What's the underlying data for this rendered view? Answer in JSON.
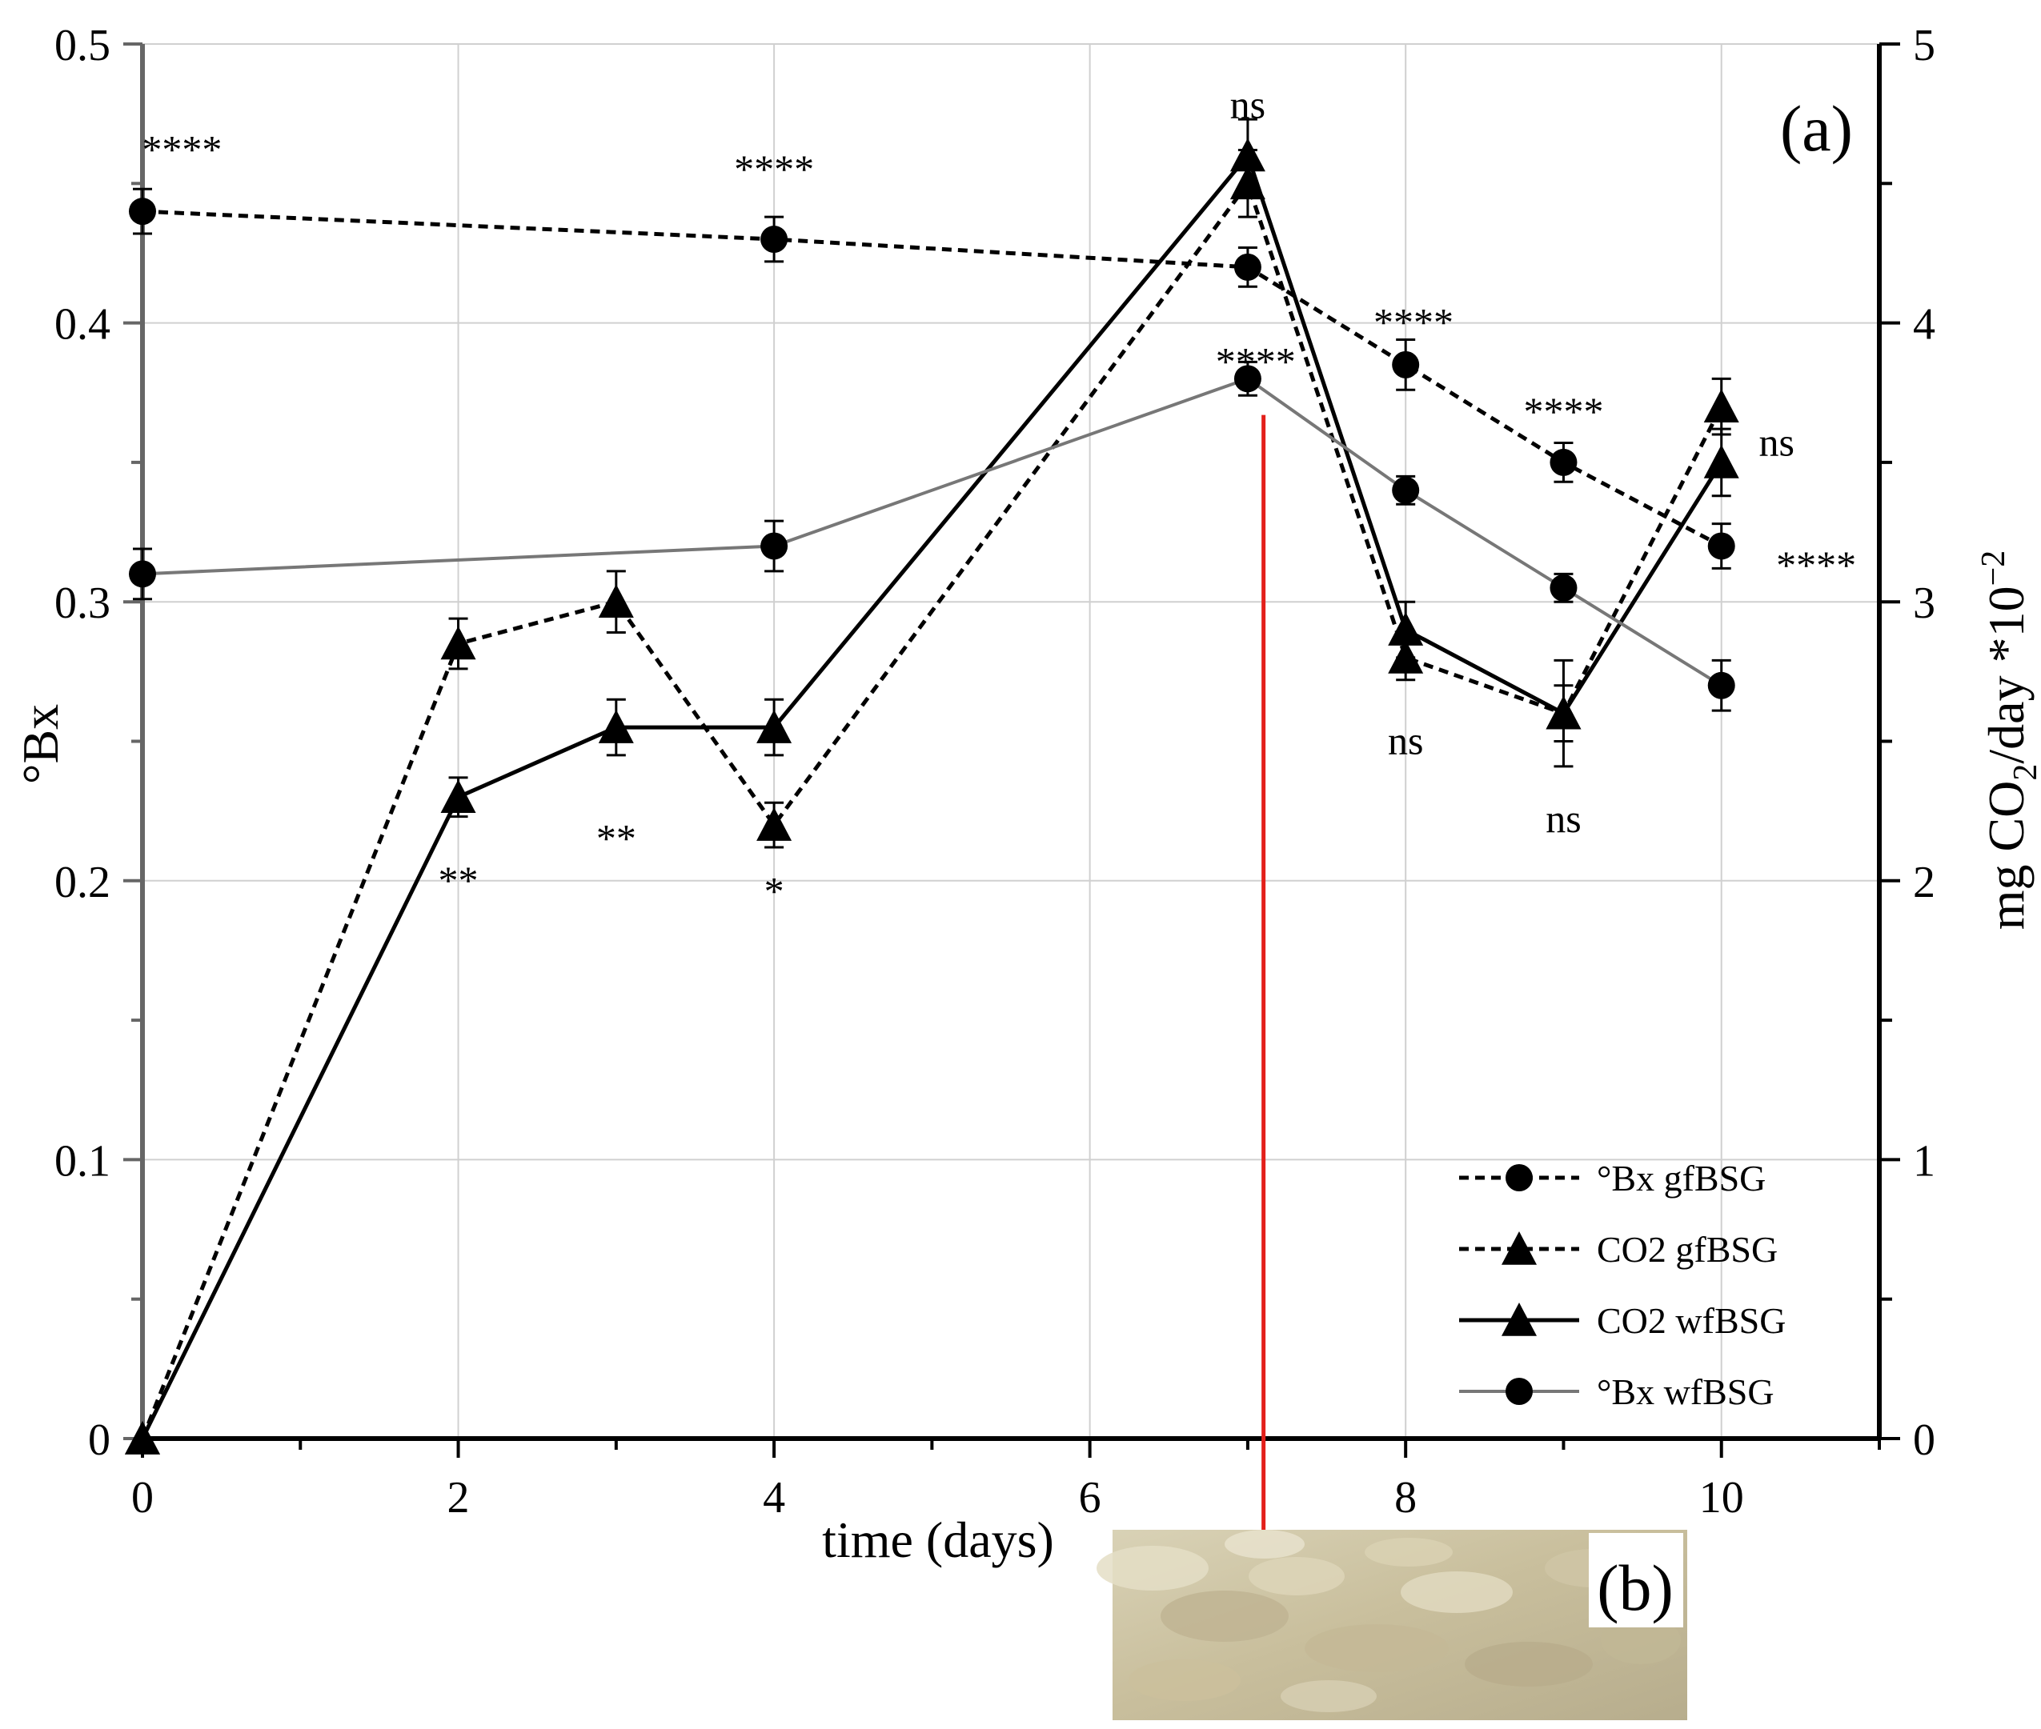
{
  "chart_data": {
    "type": "line",
    "panel_labels": {
      "a": "(a)",
      "b": "(b)"
    },
    "xlabel": "time (days)",
    "ylabel_left": "°Bx",
    "ylabel_right_parts": {
      "main": "mg CO",
      "sub": "2",
      "tail": "/day *10",
      "sup": "−2"
    },
    "xlim": [
      0,
      11
    ],
    "ylim_left": [
      0,
      0.5
    ],
    "ylim_right": [
      0,
      5
    ],
    "x_ticks": [
      0,
      2,
      4,
      6,
      8,
      10
    ],
    "x_tick_labels": [
      "0",
      "2",
      "4",
      "6",
      "8",
      "10"
    ],
    "y_left_ticks": [
      0,
      0.1,
      0.2,
      0.3,
      0.4,
      0.5
    ],
    "y_left_tick_labels": [
      "0",
      "0.1",
      "0.2",
      "0.3",
      "0.4",
      "0.5"
    ],
    "y_right_ticks": [
      0,
      1,
      2,
      3,
      4,
      5
    ],
    "y_right_tick_labels": [
      "0",
      "1",
      "2",
      "3",
      "4",
      "5"
    ],
    "grid": true,
    "legend_position": "bottom-right",
    "series": [
      {
        "name": "°Bx gfBSG",
        "axis": "left",
        "marker": "circle",
        "style": "dashed",
        "color": "#000000",
        "x": [
          0,
          4,
          7,
          8,
          9,
          10
        ],
        "y": [
          0.44,
          0.43,
          0.42,
          0.385,
          0.35,
          0.32
        ],
        "err": [
          0.008,
          0.008,
          0.007,
          0.009,
          0.007,
          0.008
        ]
      },
      {
        "name": "CO2 gfBSG",
        "axis": "right",
        "marker": "triangle",
        "style": "dashed",
        "color": "#000000",
        "x": [
          0,
          2,
          3,
          4,
          7,
          8,
          9,
          10
        ],
        "y": [
          0,
          2.85,
          3.0,
          2.2,
          4.5,
          2.8,
          2.6,
          3.7
        ],
        "err": [
          0,
          0.09,
          0.11,
          0.08,
          0.12,
          0.08,
          0.1,
          0.1
        ]
      },
      {
        "name": "CO2 wfBSG",
        "axis": "right",
        "marker": "triangle",
        "style": "solid",
        "color": "#000000",
        "x": [
          0,
          2,
          3,
          4,
          7,
          8,
          9,
          10
        ],
        "y": [
          0,
          2.3,
          2.55,
          2.55,
          4.6,
          2.9,
          2.6,
          3.5
        ],
        "err": [
          0,
          0.07,
          0.1,
          0.1,
          0.13,
          0.1,
          0.19,
          0.12
        ]
      },
      {
        "name": "°Bx wfBSG",
        "axis": "left",
        "marker": "circle",
        "style": "solid",
        "color": "#777777",
        "x": [
          0,
          4,
          7,
          8,
          9,
          10
        ],
        "y": [
          0.31,
          0.32,
          0.38,
          0.34,
          0.305,
          0.27
        ],
        "err": [
          0.009,
          0.009,
          0.006,
          0.005,
          0.005,
          0.009
        ]
      }
    ],
    "annotations": [
      {
        "text": "****",
        "x": 0.25,
        "y_left": 0.462
      },
      {
        "text": "****",
        "x": 4.0,
        "y_left": 0.455
      },
      {
        "text": "ns",
        "x": 7.0,
        "y_left": 0.478
      },
      {
        "text": "****",
        "x": 7.05,
        "y_left": 0.386
      },
      {
        "text": "****",
        "x": 8.05,
        "y_left": 0.4
      },
      {
        "text": "****",
        "x": 9.0,
        "y_left": 0.368
      },
      {
        "text": "ns",
        "x": 10.35,
        "y_left": 0.357
      },
      {
        "text": "****",
        "x": 10.6,
        "y_left": 0.313
      },
      {
        "text": "ns",
        "x": 8.0,
        "y_left": 0.25
      },
      {
        "text": "ns",
        "x": 9.0,
        "y_left": 0.222
      },
      {
        "text": "**",
        "x": 2.0,
        "y_left": 0.2
      },
      {
        "text": "**",
        "x": 3.0,
        "y_left": 0.215
      },
      {
        "text": "*",
        "x": 4.0,
        "y_left": 0.196
      }
    ],
    "arrow_from": {
      "x": 7.1,
      "y_left": 0.367
    },
    "inset_color": "#cfc6a6"
  }
}
